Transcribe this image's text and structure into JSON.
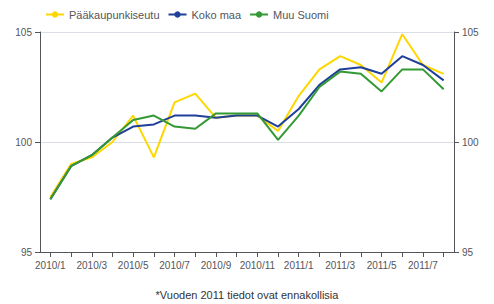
{
  "chart_data": {
    "type": "line",
    "annotations": [
      "*Vuoden 2011 tiedot ovat ennakollisia"
    ],
    "categories": [
      "2010/1",
      null,
      "2010/3",
      null,
      "2010/5",
      null,
      "2010/7",
      null,
      "2010/9",
      null,
      "2010/11",
      null,
      "2011/1",
      null,
      "2011/3",
      null,
      "2011/5",
      null,
      "2011/7",
      null
    ],
    "series": [
      {
        "name": "Pääkaupunkiseutu",
        "color": "#FFD700",
        "values": [
          97.5,
          99.0,
          99.3,
          100.0,
          101.2,
          99.3,
          101.8,
          102.2,
          101.1,
          101.2,
          101.2,
          100.5,
          102.1,
          103.3,
          103.9,
          103.5,
          102.7,
          104.9,
          103.5,
          103.1
        ]
      },
      {
        "name": "Koko maa",
        "color": "#1F3F99",
        "values": [
          97.4,
          98.9,
          99.4,
          100.2,
          100.7,
          100.8,
          101.2,
          101.2,
          101.1,
          101.2,
          101.2,
          100.7,
          101.5,
          102.6,
          103.3,
          103.4,
          103.1,
          103.9,
          103.5,
          102.8
        ]
      },
      {
        "name": "Muu Suomi",
        "color": "#339933",
        "values": [
          97.4,
          98.9,
          99.4,
          100.2,
          101.0,
          101.2,
          100.7,
          100.6,
          101.3,
          101.3,
          101.3,
          100.1,
          101.2,
          102.5,
          103.2,
          103.1,
          102.3,
          103.3,
          103.3,
          102.4
        ]
      }
    ],
    "ylim": [
      95,
      105
    ],
    "yticks": [
      95,
      100,
      105
    ],
    "y2lim": [
      95,
      105
    ],
    "y2ticks": [
      95,
      100,
      105
    ],
    "grid": true,
    "legend": "upper left"
  }
}
